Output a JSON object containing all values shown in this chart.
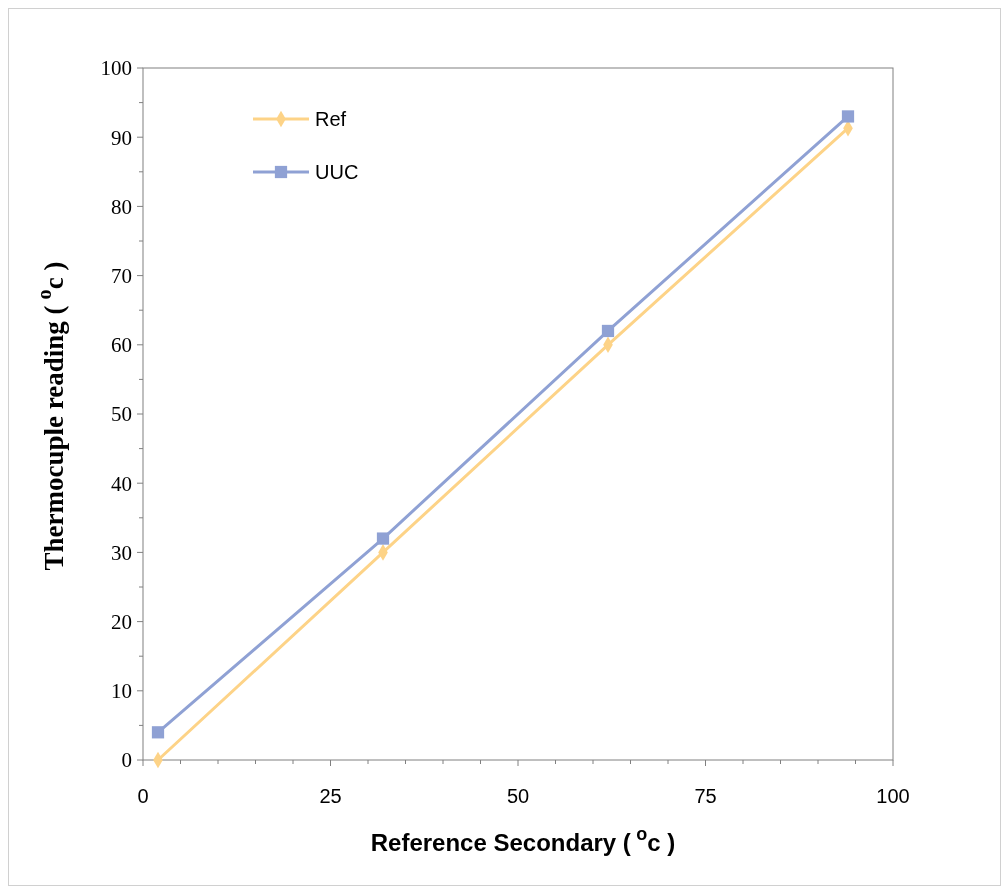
{
  "chart_data": {
    "type": "line",
    "xlabel": "Reference  Secondary ($^{o}$c )",
    "ylabel": "Thermocuple reading ($^{o}$c )",
    "xlim": [
      0,
      100
    ],
    "ylim": [
      0,
      100
    ],
    "xticks": [
      0,
      {
        "value": 5,
        "label": null
      },
      {
        "value": 10,
        "label": null
      },
      {
        "value": 15,
        "label": null
      },
      {
        "value": 20,
        "label": null
      },
      25,
      {
        "value": 30,
        "label": null
      },
      {
        "value": 35,
        "label": null
      },
      {
        "value": 40,
        "label": null
      },
      {
        "value": 45,
        "label": null
      },
      50,
      {
        "value": 55,
        "label": null
      },
      {
        "value": 60,
        "label": null
      },
      {
        "value": 65,
        "label": null
      },
      {
        "value": 70,
        "label": null
      },
      75,
      {
        "value": 80,
        "label": null
      },
      {
        "value": 85,
        "label": null
      },
      {
        "value": 90,
        "label": null
      },
      {
        "value": 95,
        "label": null
      },
      100
    ],
    "yticks": [
      0,
      {
        "value": 5,
        "label": null
      },
      10,
      {
        "value": 15,
        "label": null
      },
      20,
      {
        "value": 25,
        "label": null
      },
      30,
      {
        "value": 35,
        "label": null
      },
      40,
      {
        "value": 45,
        "label": null
      },
      50,
      {
        "value": 55,
        "label": null
      },
      60,
      {
        "value": 65,
        "label": null
      },
      70,
      {
        "value": 75,
        "label": null
      },
      80,
      {
        "value": 85,
        "label": null
      },
      90,
      {
        "value": 95,
        "label": null
      },
      100
    ],
    "grid": false,
    "legend": "top left",
    "line_style": "solid",
    "series": [
      {
        "name": "Ref",
        "color": "#fdd387",
        "marker": "diamond",
        "x": [
          2,
          32,
          62,
          94
        ],
        "values": [
          0,
          30,
          60,
          91.3
        ]
      },
      {
        "name": "UUC",
        "color": "#8fa1d4",
        "marker": "square",
        "x": [
          2,
          32,
          62,
          94
        ],
        "values": [
          4,
          32,
          62,
          93
        ]
      }
    ]
  }
}
